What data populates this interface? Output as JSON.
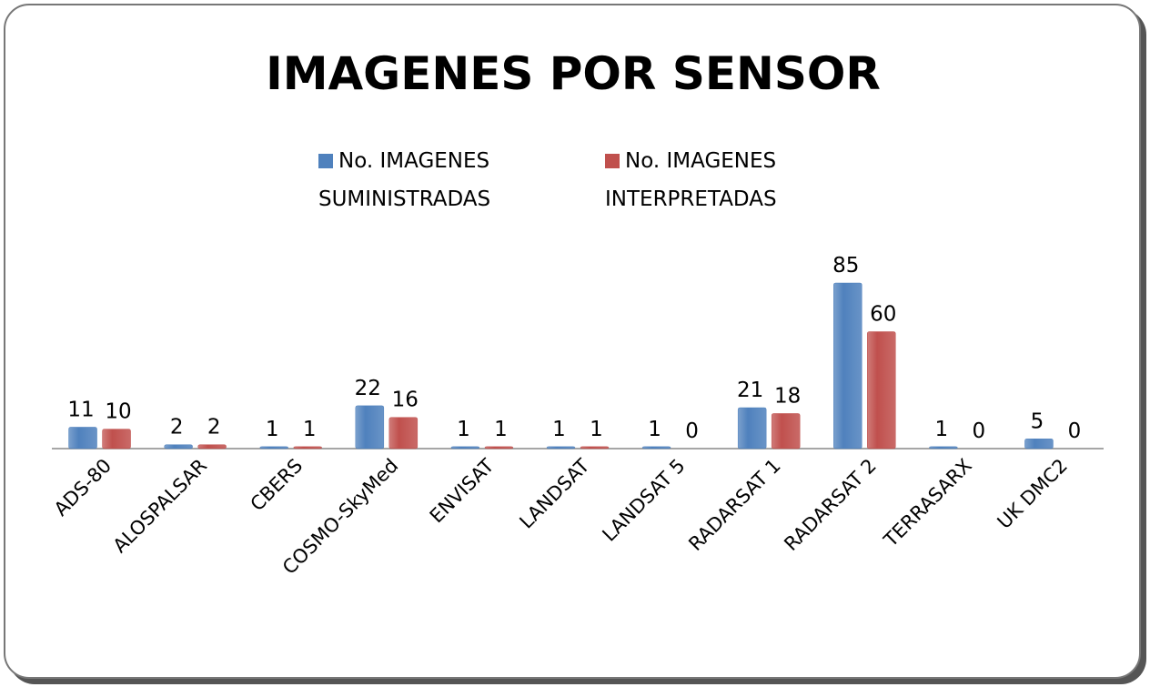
{
  "chart_data": {
    "type": "bar",
    "title": "IMAGENES POR SENSOR",
    "categories": [
      "ADS-80",
      "ALOSPALSAR",
      "CBERS",
      "COSMO-SkyMed",
      "ENVISAT",
      "LANDSAT",
      "LANDSAT 5",
      "RADARSAT 1",
      "RADARSAT 2",
      "TERRASARX",
      "UK DMC2"
    ],
    "series": [
      {
        "name": "No. IMAGENES SUMINISTRADAS",
        "color": "#4f81bd",
        "values": [
          11,
          2,
          1,
          22,
          1,
          1,
          1,
          21,
          85,
          1,
          5
        ]
      },
      {
        "name": "No. IMAGENES INTERPRETADAS",
        "color": "#c0504d",
        "values": [
          10,
          2,
          1,
          16,
          1,
          1,
          0,
          18,
          60,
          0,
          0
        ]
      }
    ],
    "legend": "top"
  }
}
